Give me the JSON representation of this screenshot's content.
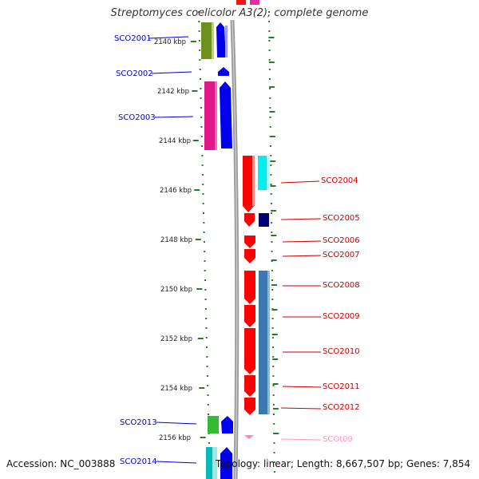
{
  "title": "Streptomyces coelicolor A3(2), complete genome",
  "footer": {
    "accession": "Accession: NC_003888",
    "info": "Topology: linear; Length: 8,667,507 bp; Genes: 7,854"
  },
  "axis": {
    "unit": "kbp",
    "ticks": [
      "2140 kbp",
      "2142 kbp",
      "2144 kbp",
      "2146 kbp",
      "2148 kbp",
      "2150 kbp",
      "2152 kbp",
      "2154 kbp",
      "2156 kbp"
    ]
  },
  "genes_left": [
    {
      "name": "SCO2001",
      "color": "#0000cc"
    },
    {
      "name": "SCO2002",
      "color": "#0000cc"
    },
    {
      "name": "SCO2003",
      "color": "#0000cc"
    },
    {
      "name": "SCO2013",
      "color": "#0000cc"
    },
    {
      "name": "SCO2014",
      "color": "#0000cc"
    }
  ],
  "genes_right": [
    {
      "name": "SCO2004",
      "color": "#cc0000"
    },
    {
      "name": "SCO2005",
      "color": "#cc0000"
    },
    {
      "name": "SCO2006",
      "color": "#cc0000"
    },
    {
      "name": "SCO2007",
      "color": "#cc0000"
    },
    {
      "name": "SCO2008",
      "color": "#cc0000"
    },
    {
      "name": "SCO2009",
      "color": "#cc0000"
    },
    {
      "name": "SCO2010",
      "color": "#cc0000"
    },
    {
      "name": "SCO2011",
      "color": "#cc0000"
    },
    {
      "name": "SCO2012",
      "color": "#cc0000"
    },
    {
      "name": "SCOt09",
      "color": "#ff99bb"
    }
  ],
  "colors": {
    "axis_dots": "#2a7a2a",
    "backbone": "#888888",
    "cds_forward": "#0000ee",
    "cds_reverse": "#ff0000",
    "trna": "#ff88aa"
  }
}
